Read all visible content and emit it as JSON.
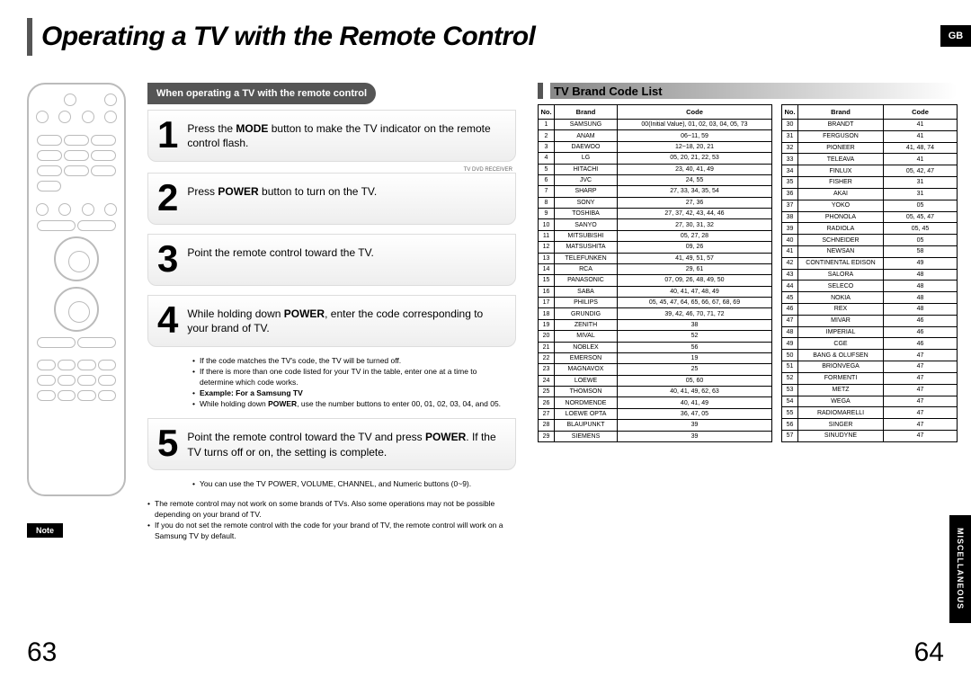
{
  "title": "Operating a TV with the Remote Control",
  "gb": "GB",
  "sideTab": "MISCELLANEOUS",
  "noteBadge": "Note",
  "section1": "When operating a TV with the remote control",
  "section2": "TV Brand Code List",
  "modeLabel": "TV   DVD RECEIVER",
  "steps": {
    "s1": "Press the <b>MODE</b> button to make the TV indicator on the remote control flash.",
    "s2": "Press <b>POWER</b> button to turn on the TV.",
    "s3": "Point the remote control toward the TV.",
    "s4": "While holding down <b>POWER</b>, enter the code corresponding to your brand of TV.",
    "s5": "Point the remote control toward the TV and press <b>POWER</b>. If the TV turns off or on, the setting is complete."
  },
  "bulletsAfter4": [
    "If the code matches the TV's code, the TV will be turned off.",
    "If there is more than one code listed for your TV in the table, enter one at a time to determine which code works.",
    "<b>Example: For a Samsung TV</b>",
    "While holding down <b>POWER</b>, use the number buttons to enter 00, 01, 02, 03, 04, and 05."
  ],
  "bulletsAfter5": [
    "You can use the TV POWER, VOLUME, CHANNEL, and Numeric buttons (0~9)."
  ],
  "notes": [
    "The remote control may not work on some brands of TVs. Also some operations may not be possible depending on your brand of TV.",
    "If you do not set the remote control with the code for your brand of TV, the remote control will work on a Samsung TV by default."
  ],
  "tableHeaders": {
    "no": "No.",
    "brand": "Brand",
    "code": "Code"
  },
  "brandsLeft": [
    {
      "n": "1",
      "b": "SAMSUNG",
      "c": "00(Initial Value), 01, 02, 03, 04, 05, 73"
    },
    {
      "n": "2",
      "b": "ANAM",
      "c": "06~11, 59"
    },
    {
      "n": "3",
      "b": "DAEWOO",
      "c": "12~18, 20, 21"
    },
    {
      "n": "4",
      "b": "LG",
      "c": "05, 20, 21, 22, 53"
    },
    {
      "n": "5",
      "b": "HITACHI",
      "c": "23, 40, 41, 49"
    },
    {
      "n": "6",
      "b": "JVC",
      "c": "24, 55"
    },
    {
      "n": "7",
      "b": "SHARP",
      "c": "27, 33, 34, 35, 54"
    },
    {
      "n": "8",
      "b": "SONY",
      "c": "27, 36"
    },
    {
      "n": "9",
      "b": "TOSHIBA",
      "c": "27, 37, 42, 43, 44, 46"
    },
    {
      "n": "10",
      "b": "SANYO",
      "c": "27, 30, 31, 32"
    },
    {
      "n": "11",
      "b": "MITSUBISHI",
      "c": "05, 27, 28"
    },
    {
      "n": "12",
      "b": "MATSUSHITA",
      "c": "09, 26"
    },
    {
      "n": "13",
      "b": "TELEFUNKEN",
      "c": "41, 49, 51, 57"
    },
    {
      "n": "14",
      "b": "RCA",
      "c": "29, 61"
    },
    {
      "n": "15",
      "b": "PANASONIC",
      "c": "07, 09, 26, 48, 49, 50"
    },
    {
      "n": "16",
      "b": "SABA",
      "c": "40, 41, 47, 48, 49"
    },
    {
      "n": "17",
      "b": "PHILIPS",
      "c": "05, 45, 47, 64, 65, 66, 67, 68, 69"
    },
    {
      "n": "18",
      "b": "GRUNDIG",
      "c": "39, 42, 46, 70, 71, 72"
    },
    {
      "n": "19",
      "b": "ZENITH",
      "c": "38"
    },
    {
      "n": "20",
      "b": "MIVAL",
      "c": "52"
    },
    {
      "n": "21",
      "b": "NOBLEX",
      "c": "56"
    },
    {
      "n": "22",
      "b": "EMERSON",
      "c": "19"
    },
    {
      "n": "23",
      "b": "MAGNAVOX",
      "c": "25"
    },
    {
      "n": "24",
      "b": "LOEWE",
      "c": "05, 60"
    },
    {
      "n": "25",
      "b": "THOMSON",
      "c": "40, 41, 49, 62, 63"
    },
    {
      "n": "26",
      "b": "NORDMENDE",
      "c": "40, 41, 49"
    },
    {
      "n": "27",
      "b": "LOEWE OPTA",
      "c": "36, 47, 05"
    },
    {
      "n": "28",
      "b": "BLAUPUNKT",
      "c": "39"
    },
    {
      "n": "29",
      "b": "SIEMENS",
      "c": "39"
    }
  ],
  "brandsRight": [
    {
      "n": "30",
      "b": "BRANDT",
      "c": "41"
    },
    {
      "n": "31",
      "b": "FERGUSON",
      "c": "41"
    },
    {
      "n": "32",
      "b": "PIONEER",
      "c": "41, 48, 74"
    },
    {
      "n": "33",
      "b": "TELEAVA",
      "c": "41"
    },
    {
      "n": "34",
      "b": "FINLUX",
      "c": "05, 42, 47"
    },
    {
      "n": "35",
      "b": "FISHER",
      "c": "31"
    },
    {
      "n": "36",
      "b": "AKAI",
      "c": "31"
    },
    {
      "n": "37",
      "b": "YOKO",
      "c": "05"
    },
    {
      "n": "38",
      "b": "PHONOLA",
      "c": "05, 45, 47"
    },
    {
      "n": "39",
      "b": "RADIOLA",
      "c": "05, 45"
    },
    {
      "n": "40",
      "b": "SCHNEIDER",
      "c": "05"
    },
    {
      "n": "41",
      "b": "NEWSAN",
      "c": "58"
    },
    {
      "n": "42",
      "b": "CONTINENTAL EDISON",
      "c": "49"
    },
    {
      "n": "43",
      "b": "SALORA",
      "c": "48"
    },
    {
      "n": "44",
      "b": "SELECO",
      "c": "48"
    },
    {
      "n": "45",
      "b": "NOKIA",
      "c": "48"
    },
    {
      "n": "46",
      "b": "REX",
      "c": "48"
    },
    {
      "n": "47",
      "b": "MIVAR",
      "c": "46"
    },
    {
      "n": "48",
      "b": "IMPERIAL",
      "c": "46"
    },
    {
      "n": "49",
      "b": "CGE",
      "c": "46"
    },
    {
      "n": "50",
      "b": "BANG & OLUFSEN",
      "c": "47"
    },
    {
      "n": "51",
      "b": "BRIONVEGA",
      "c": "47"
    },
    {
      "n": "52",
      "b": "FORMENTI",
      "c": "47"
    },
    {
      "n": "53",
      "b": "METZ",
      "c": "47"
    },
    {
      "n": "54",
      "b": "WEGA",
      "c": "47"
    },
    {
      "n": "55",
      "b": "RADIOMARELLI",
      "c": "47"
    },
    {
      "n": "56",
      "b": "SINGER",
      "c": "47"
    },
    {
      "n": "57",
      "b": "SINUDYNE",
      "c": "47"
    }
  ],
  "pageLeft": "63",
  "pageRight": "64"
}
